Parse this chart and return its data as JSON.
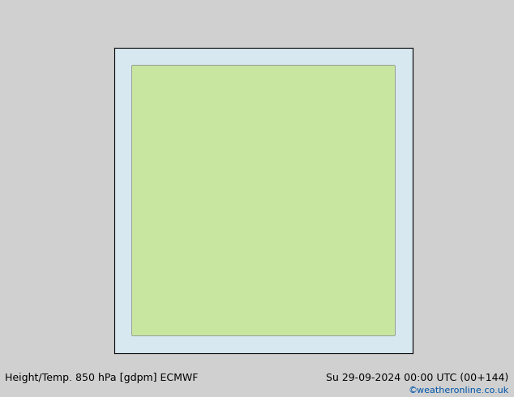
{
  "title_left": "Height/Temp. 850 hPa [gdpm] ECMWF",
  "title_right": "Su 29-09-2024 00:00 UTC (00+144)",
  "credit": "©weatheronline.co.uk",
  "bg_color": "#d0d0d0",
  "land_color": "#c8e6a0",
  "ocean_color": "#d8e8f0",
  "fig_width": 6.34,
  "fig_height": 4.9,
  "dpi": 100,
  "title_fontsize": 9,
  "credit_fontsize": 8,
  "credit_color": "#0055aa"
}
